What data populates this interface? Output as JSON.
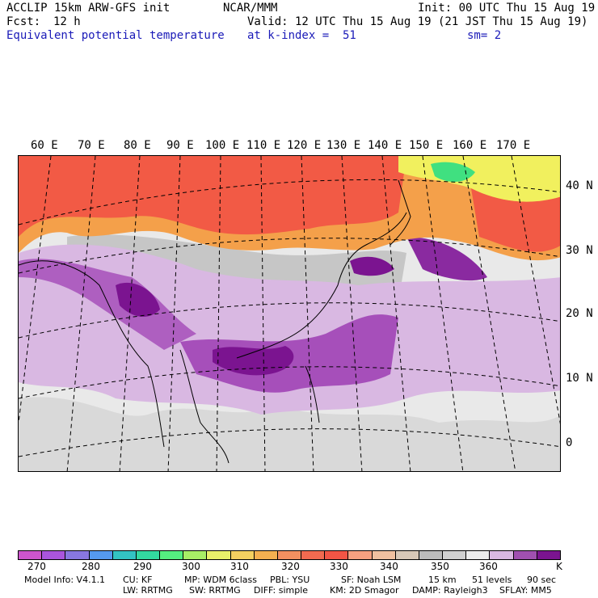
{
  "header": {
    "model_line": "ACCLIP 15km ARW-GFS init",
    "fcst_label": "Fcst:",
    "fcst_value": "12 h",
    "field_name": "Equivalent potential temperature",
    "org": "NCAR/MMM",
    "init": "Init: 00 UTC Thu 15 Aug 19",
    "valid": "Valid: 12 UTC Thu 15 Aug 19 (21 JST Thu 15 Aug 19)",
    "level": "at k-index =  51",
    "smoothing": "sm= 2"
  },
  "map": {
    "lon_labels": [
      "60 E",
      "70 E",
      "80 E",
      "90 E",
      "100 E",
      "110 E",
      "120 E",
      "130 E",
      "140 E",
      "150 E",
      "160 E",
      "170 E"
    ],
    "lat_labels": [
      "40 N",
      "30 N",
      "20 N",
      "10 N",
      "0"
    ],
    "field_colors": {
      "purple_dark": "#7b1490",
      "purple_mid": "#a64fba",
      "lavender": "#d9b8e2",
      "gray": "#c6c6c6",
      "light_gray": "#e9e9e9",
      "orange": "#f4a04a",
      "red": "#f25a45",
      "green": "#40e080",
      "yellow": "#f1f05e"
    }
  },
  "colorbar": {
    "unit": "K",
    "colors": [
      "#cc55cc",
      "#aa55dd",
      "#8877e0",
      "#5599ee",
      "#33c3c3",
      "#33d9a0",
      "#55ee80",
      "#a8ee66",
      "#e8f06a",
      "#f4d060",
      "#f4b050",
      "#f49060",
      "#f26a50",
      "#f25545",
      "#f6a080",
      "#f0c0a0",
      "#d8c8b8",
      "#bcbcbc",
      "#d0d0d0",
      "#ececec",
      "#d9b8e2",
      "#a050b0",
      "#7b1490"
    ],
    "ticks": [
      "270",
      "280",
      "290",
      "300",
      "310",
      "320",
      "330",
      "340",
      "350",
      "360"
    ]
  },
  "footer": {
    "model_info": "Model Info: V4.1.1",
    "cu": "CU: KF",
    "mp": "MP: WDM 6class",
    "pbl": "PBL: YSU",
    "sf": "SF: Noah LSM",
    "res": "15 km",
    "levels": "51 levels",
    "dt": "90 sec",
    "lw": "LW: RRTMG",
    "sw": "SW: RRTMG",
    "diff": "DIFF: simple",
    "km": "KM: 2D Smagor",
    "damp": "DAMP: Rayleigh3",
    "sflay": "SFLAY: MM5"
  }
}
